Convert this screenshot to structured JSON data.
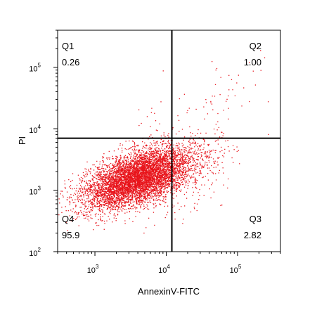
{
  "chart_data": {
    "type": "scatter",
    "xlabel": "AnnexinV-FITC",
    "ylabel": "PI",
    "xscale": "log",
    "yscale": "log",
    "xlim": [
      300,
      400000
    ],
    "ylim": [
      100,
      400000
    ],
    "x_ticks": [
      {
        "base": "10",
        "exp": "3",
        "value": 1000
      },
      {
        "base": "10",
        "exp": "4",
        "value": 10000
      },
      {
        "base": "10",
        "exp": "5",
        "value": 100000
      }
    ],
    "y_ticks": [
      {
        "base": "10",
        "exp": "2",
        "value": 100
      },
      {
        "base": "10",
        "exp": "3",
        "value": 1000
      },
      {
        "base": "10",
        "exp": "4",
        "value": 10000
      },
      {
        "base": "10",
        "exp": "5",
        "value": 100000
      }
    ],
    "gates": {
      "x": 12000,
      "y": 7000
    },
    "quadrants": [
      {
        "name": "Q1",
        "value": "0.26",
        "position": "top-left"
      },
      {
        "name": "Q2",
        "value": "1.00",
        "position": "top-right"
      },
      {
        "name": "Q3",
        "value": "2.82",
        "position": "bottom-right"
      },
      {
        "name": "Q4",
        "value": "95.9",
        "position": "bottom-left"
      }
    ],
    "point_color": "#e8141b",
    "point_groups": [
      {
        "name": "Q4",
        "count": 6500,
        "center": [
          4000,
          1600
        ],
        "spread": [
          0.38,
          0.25
        ]
      },
      {
        "name": "Q3",
        "count": 190,
        "center": [
          25000,
          1800
        ],
        "spread": [
          0.3,
          0.35
        ]
      },
      {
        "name": "Q2",
        "count": 68,
        "center": [
          45000,
          25000
        ],
        "spread": [
          0.35,
          0.45
        ]
      },
      {
        "name": "Q1",
        "count": 17,
        "center": [
          6000,
          20000
        ],
        "spread": [
          0.2,
          0.35
        ]
      }
    ]
  }
}
